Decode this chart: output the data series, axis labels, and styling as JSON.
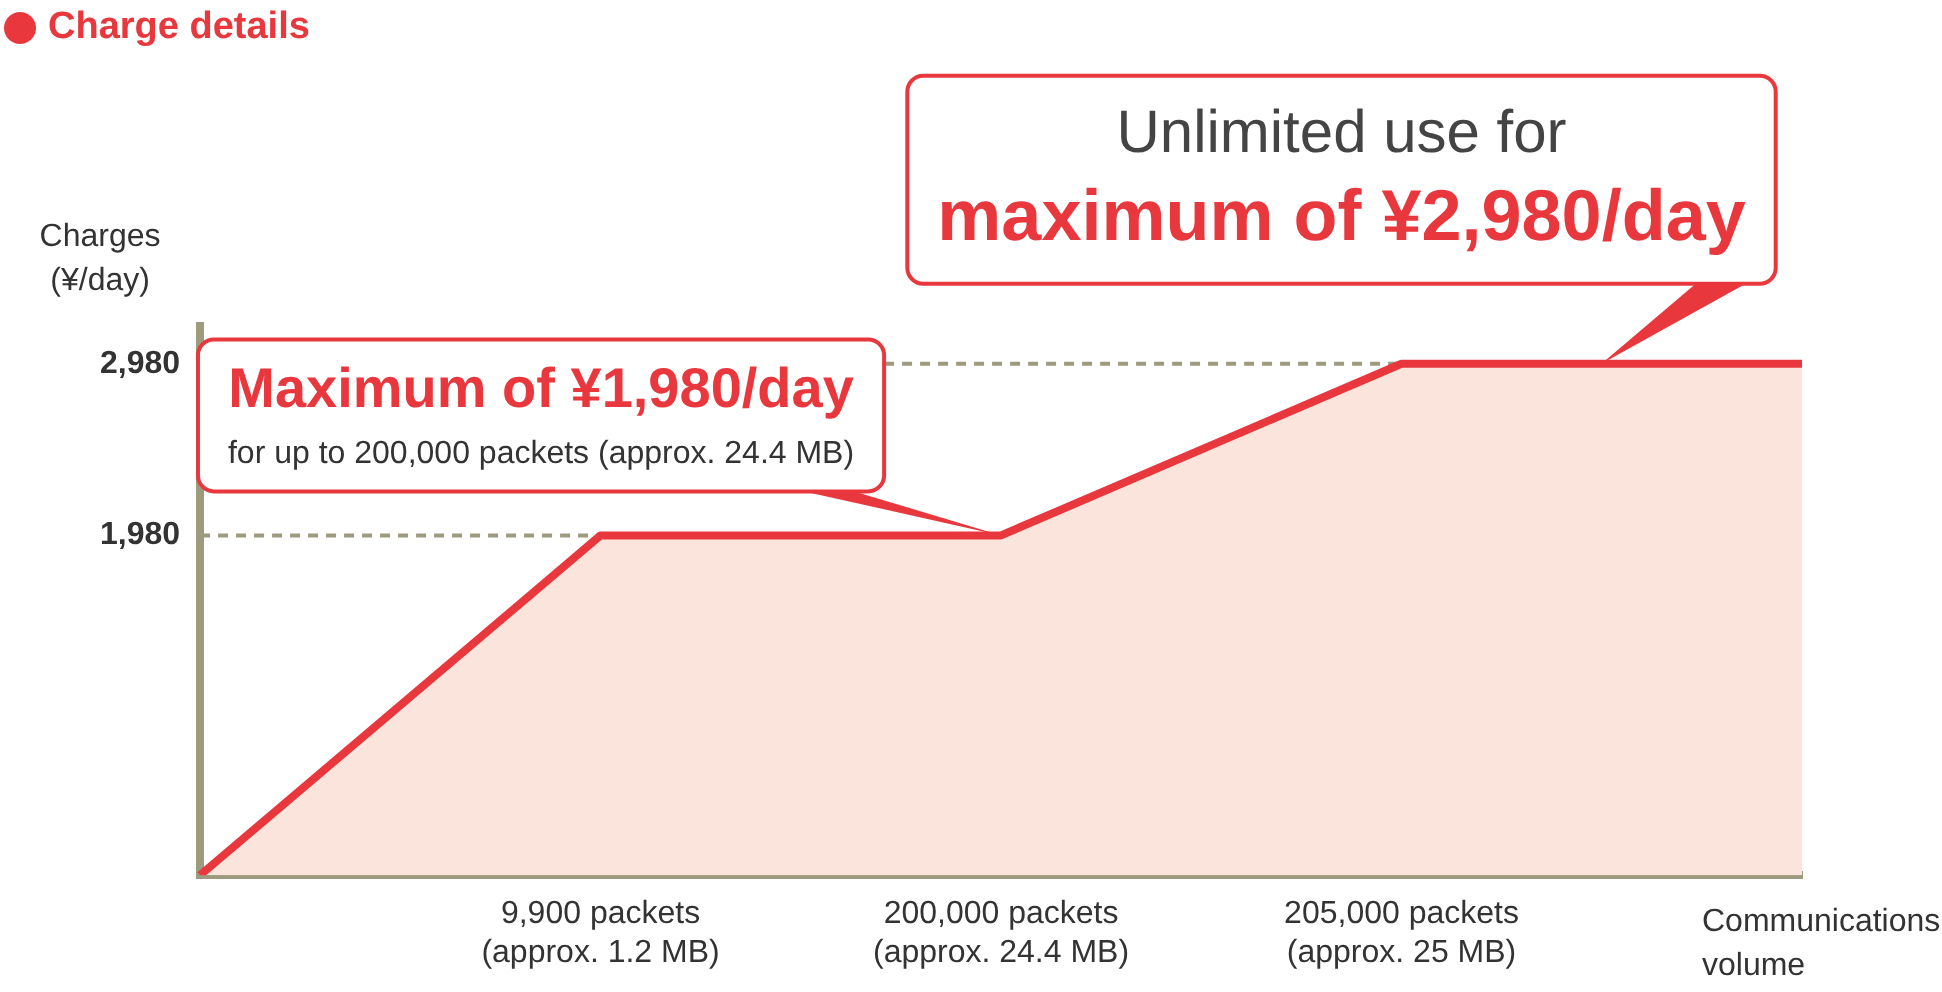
{
  "chart_data": {
    "type": "area",
    "title": "Charge details",
    "ylabel": "Charges\n(¥/day)",
    "xlabel": "Communications\nvolume",
    "categories": [
      null,
      "9,900 packets\n(approx. 1.2 MB)",
      "200,000 packets\n(approx. 24.4 MB)",
      "205,000 packets\n(approx. 25 MB)",
      null
    ],
    "series": [
      {
        "color": "#e8383d",
        "values": [
          0,
          1980,
          1980,
          2980,
          2980
        ]
      }
    ],
    "ylim": [
      0,
      3200
    ],
    "yticks": [
      {
        "value": 1980,
        "label": "1,980"
      },
      {
        "value": 2980,
        "label": "2,980"
      }
    ],
    "grid": false,
    "legend": false,
    "ref_lines": [
      {
        "axis": "y",
        "value": 1980,
        "color": "#9e9a7e",
        "line_style": "dashed"
      },
      {
        "axis": "y",
        "value": 2980,
        "color": "#9e9a7e",
        "line_style": "dashed"
      }
    ],
    "annotations": [
      {
        "text": "Unlimited use for\nmaximum of ¥2,980/day",
        "x": "205,000 packets\n(approx. 25 MB)",
        "y": 2980
      },
      {
        "text": "Maximum of ¥1,980/day\nfor up to 200,000 packets (approx. 24.4 MB)",
        "x": "200,000 packets\n(approx. 24.4 MB)",
        "y": 1980
      }
    ]
  }
}
